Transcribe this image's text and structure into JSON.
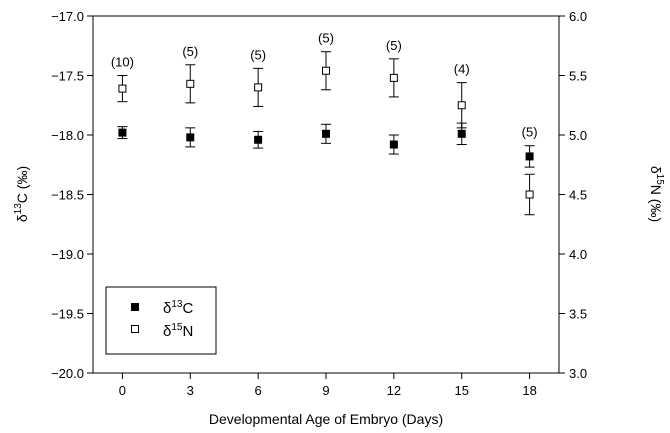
{
  "chart_data": {
    "type": "scatter",
    "xlabel": "Developmental Age of Embryo (Days)",
    "ylabel_left": {
      "base": "δ",
      "sup": "13",
      "rest": "C (‰)"
    },
    "ylabel_right": {
      "base": "δ",
      "sup": "15",
      "rest": "N (‰)"
    },
    "x": [
      0,
      3,
      6,
      9,
      12,
      15,
      18
    ],
    "x_ticks": [
      "0",
      "3",
      "6",
      "9",
      "12",
      "15",
      "18"
    ],
    "xlim": [
      -1.3,
      19.3
    ],
    "ylim_left": [
      -20.0,
      -17.0
    ],
    "ylim_right": [
      3.0,
      6.0
    ],
    "yticks_left": [
      "-20.0",
      "-19.5",
      "-19.0",
      "-18.5",
      "-18.0",
      "-17.5",
      "-17.0"
    ],
    "yticks_right": [
      "3.0",
      "3.5",
      "4.0",
      "4.5",
      "5.0",
      "5.5",
      "6.0"
    ],
    "sample_sizes": [
      "(10)",
      "(5)",
      "(5)",
      "(5)",
      "(5)",
      "(4)",
      "(5)"
    ],
    "series": [
      {
        "name": "δ13C",
        "name_base": "δ",
        "name_sup": "13",
        "name_rest": "C",
        "axis": "left",
        "marker": "filled-square",
        "values": [
          -17.98,
          -18.02,
          -18.04,
          -17.99,
          -18.08,
          -17.99,
          -18.18
        ],
        "errors": [
          0.05,
          0.08,
          0.07,
          0.08,
          0.08,
          0.09,
          0.09
        ]
      },
      {
        "name": "δ15N",
        "name_base": "δ",
        "name_sup": "15",
        "name_rest": "N",
        "axis": "right",
        "marker": "open-square",
        "values": [
          5.39,
          5.43,
          5.4,
          5.54,
          5.48,
          5.25,
          4.5
        ],
        "errors": [
          0.11,
          0.16,
          0.16,
          0.16,
          0.16,
          0.19,
          0.17
        ]
      }
    ],
    "legend_position": "bottom-left",
    "grid": false
  }
}
